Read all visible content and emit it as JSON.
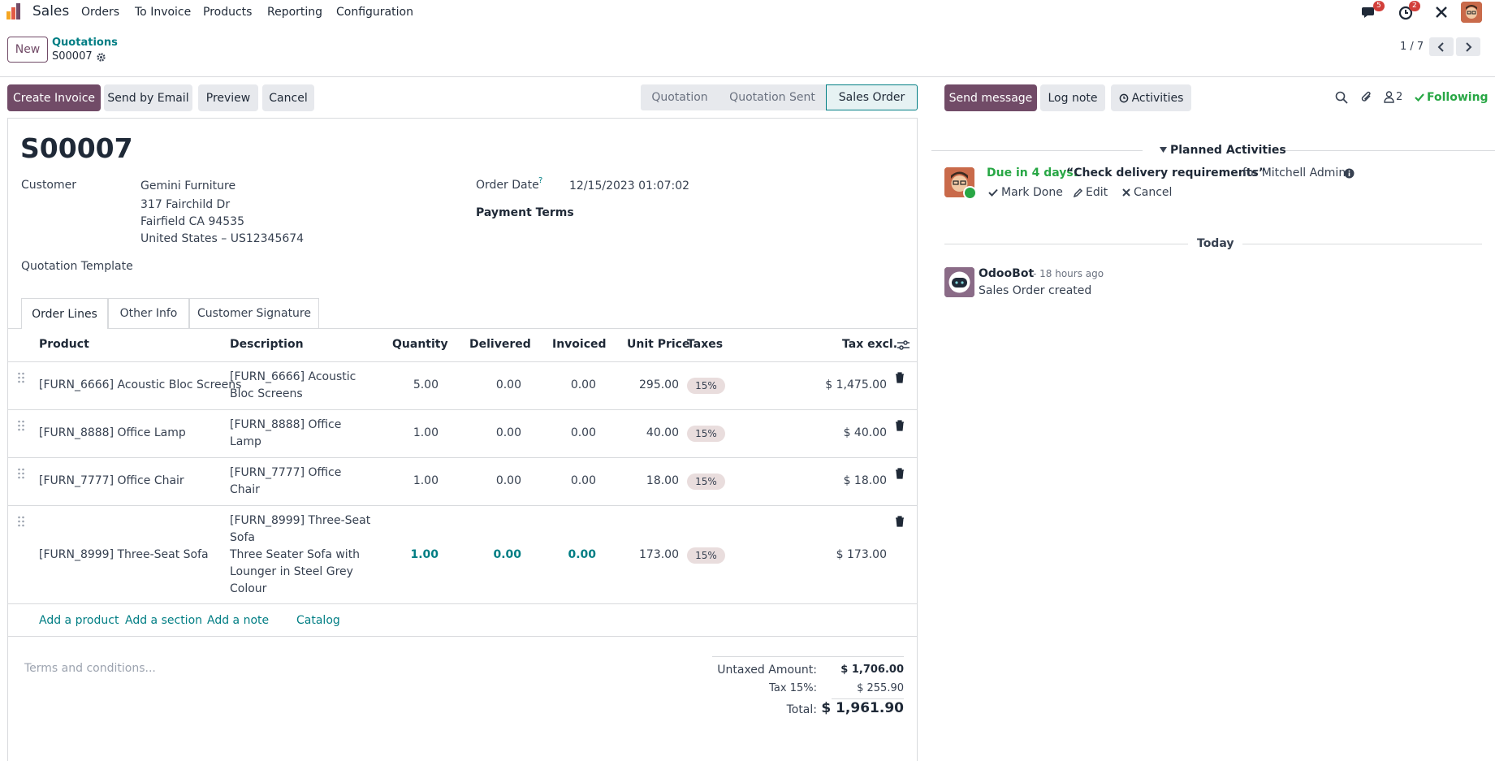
{
  "nav": {
    "app_name": "Sales",
    "menu": [
      "Orders",
      "To Invoice",
      "Products",
      "Reporting",
      "Configuration"
    ],
    "messages_count": "5",
    "activities_count": "2",
    "colors": {
      "brand": "#714b67",
      "link": "#017e84",
      "badge": "#d23f3a"
    }
  },
  "control_panel": {
    "new_label": "New",
    "breadcrumb_parent": "Quotations",
    "record_name": "S00007",
    "pager": "1 / 7"
  },
  "actions": {
    "create_invoice": "Create Invoice",
    "send_email": "Send by Email",
    "preview": "Preview",
    "cancel": "Cancel"
  },
  "statusbar": {
    "stages": [
      "Quotation",
      "Quotation Sent",
      "Sales Order"
    ],
    "current": "Sales Order"
  },
  "form": {
    "title": "S00007",
    "customer_label": "Customer",
    "customer_name": "Gemini Furniture",
    "address_line1": "317 Fairchild Dr",
    "address_line2": "Fairfield CA 94535",
    "address_line3": "United States – US12345674",
    "template_label": "Quotation Template",
    "order_date_label": "Order Date",
    "order_date_help": "?",
    "order_date": "12/15/2023 01:07:02",
    "payment_terms_label": "Payment Terms"
  },
  "tabs": [
    "Order Lines",
    "Other Info",
    "Customer Signature"
  ],
  "table": {
    "headers": {
      "product": "Product",
      "description": "Description",
      "quantity": "Quantity",
      "delivered": "Delivered",
      "invoiced": "Invoiced",
      "unit_price": "Unit Price",
      "taxes": "Taxes",
      "tax_excl": "Tax excl."
    },
    "rows": [
      {
        "product": "[FURN_6666] Acoustic Bloc Screens",
        "desc1": "[FURN_6666] Acoustic",
        "desc2": "Bloc Screens",
        "qty": "5.00",
        "delivered": "0.00",
        "invoiced": "0.00",
        "price": "295.00",
        "tax": "15%",
        "subtotal": "$ 1,475.00"
      },
      {
        "product": "[FURN_8888] Office Lamp",
        "desc1": "[FURN_8888] Office",
        "desc2": "Lamp",
        "qty": "1.00",
        "delivered": "0.00",
        "invoiced": "0.00",
        "price": "40.00",
        "tax": "15%",
        "subtotal": "$ 40.00"
      },
      {
        "product": "[FURN_7777] Office Chair",
        "desc1": "[FURN_7777] Office",
        "desc2": "Chair",
        "qty": "1.00",
        "delivered": "0.00",
        "invoiced": "0.00",
        "price": "18.00",
        "tax": "15%",
        "subtotal": "$ 18.00"
      },
      {
        "product": "[FURN_8999] Three-Seat Sofa",
        "desc1": "[FURN_8999] Three-Seat",
        "desc2": "Sofa",
        "desc3": "Three Seater Sofa with",
        "desc4": "Lounger in Steel Grey",
        "desc5": "Colour",
        "qty": "1.00",
        "delivered": "0.00",
        "invoiced": "0.00",
        "price": "173.00",
        "tax": "15%",
        "subtotal": "$ 173.00"
      }
    ],
    "add_product": "Add a product",
    "add_section": "Add a section",
    "add_note": "Add a note",
    "catalog": "Catalog"
  },
  "footer": {
    "terms_placeholder": "Terms and conditions...",
    "untaxed_label": "Untaxed Amount:",
    "untaxed_value": "$ 1,706.00",
    "tax_label": "Tax 15%:",
    "tax_value": "$ 255.90",
    "total_label": "Total:",
    "total_value": "$ 1,961.90"
  },
  "chatter": {
    "send_message": "Send message",
    "log_note": "Log note",
    "activities": "Activities",
    "followers_count": "2",
    "following": "Following",
    "planned_label": "Planned Activities",
    "due_label": "Due in 4 days:",
    "activity_title": "“Check delivery requirements”",
    "activity_for": "for Mitchell Admin",
    "mark_done": "Mark Done",
    "edit": "Edit",
    "cancel": "Cancel",
    "today_label": "Today",
    "author": "OdooBot",
    "time": "- 18 hours ago",
    "message": "Sales Order created"
  }
}
